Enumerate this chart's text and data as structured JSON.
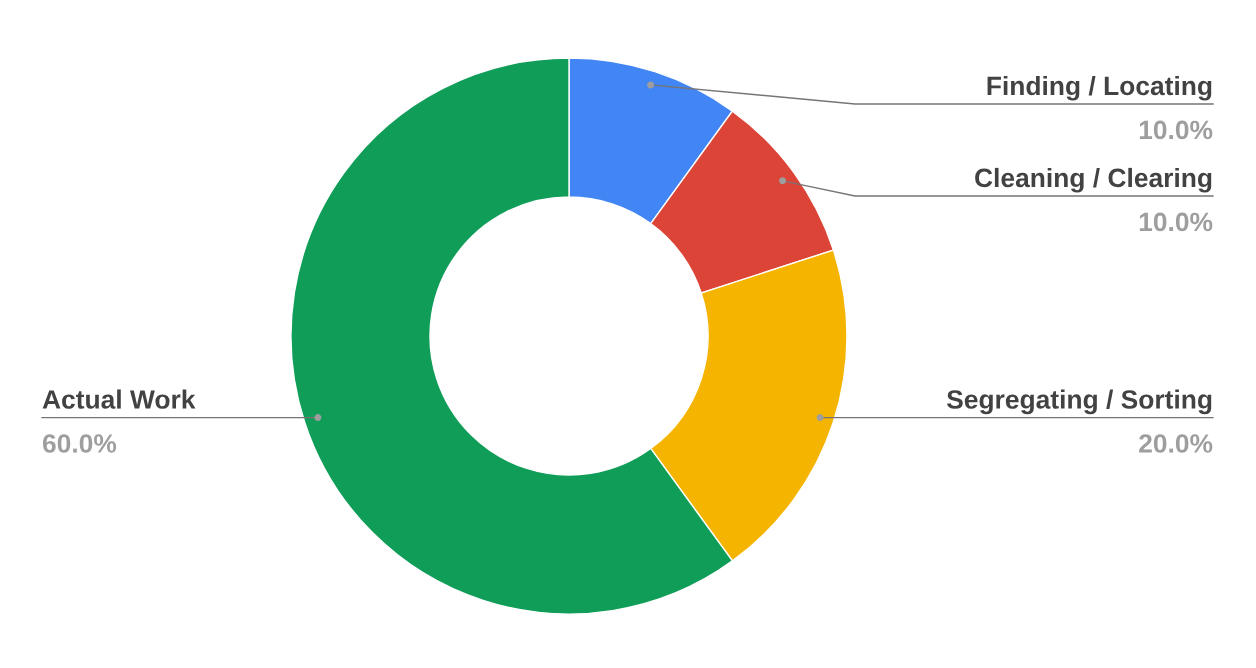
{
  "chart_data": {
    "type": "donut",
    "categories": [
      "Finding / Locating",
      "Cleaning / Clearing",
      "Segregating / Sorting",
      "Actual Work"
    ],
    "values": [
      10,
      10,
      20,
      60
    ],
    "colors": [
      "#4285f4",
      "#db4437",
      "#f4b400",
      "#0f9d58"
    ],
    "value_labels": [
      "10.0%",
      "10.0%",
      "20.0%",
      "60.0%"
    ]
  }
}
